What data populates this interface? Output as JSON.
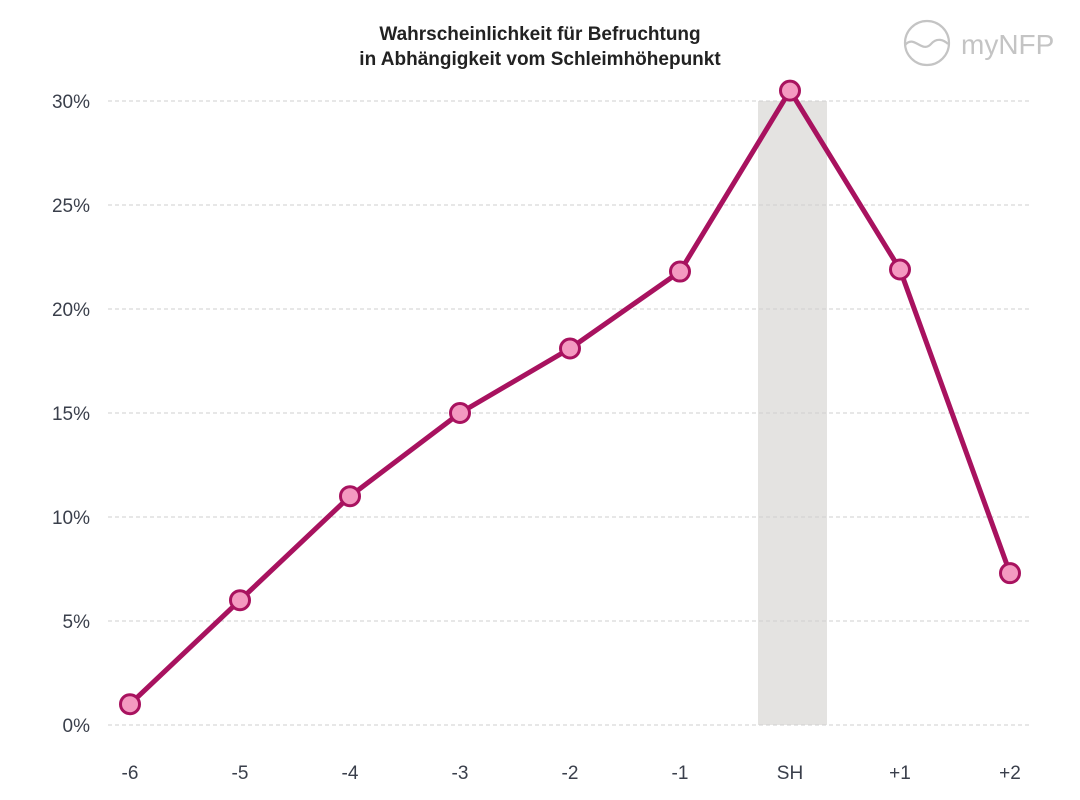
{
  "chart_data": {
    "type": "line",
    "title_lines": [
      "Wahrscheinlichkeit für Befruchtung",
      "in Abhängigkeit vom Schleimhöhepunkt"
    ],
    "categories": [
      "-6",
      "-5",
      "-4",
      "-3",
      "-2",
      "-1",
      "SH",
      "+1",
      "+2"
    ],
    "series": [
      {
        "values": [
          1.0,
          6.0,
          11.0,
          15.0,
          18.1,
          21.8,
          30.5,
          21.9,
          7.3
        ]
      }
    ],
    "ylim": [
      0,
      30
    ],
    "yticks": [
      0,
      5,
      10,
      15,
      20,
      25,
      30
    ],
    "ytick_labels": [
      "0%",
      "5%",
      "10%",
      "15%",
      "20%",
      "25%",
      "30%"
    ],
    "highlight_category": "SH",
    "grid": true,
    "colors": {
      "line": "#a8125f",
      "marker_fill": "#f49ac1",
      "highlight": "#e4e3e1",
      "grid": "#cfcfcf",
      "logo": "#c4c4c4"
    }
  },
  "logo": {
    "text": "myNFP",
    "icon": "mynfp-logo-icon"
  }
}
